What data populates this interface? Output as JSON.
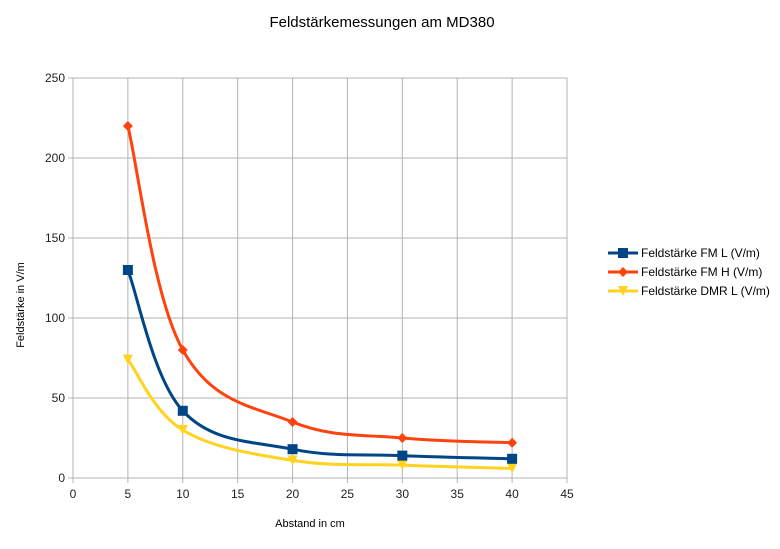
{
  "chart_data": {
    "type": "scatter",
    "title": "Feldstärkemessungen am MD380",
    "xlabel": "Abstand in cm",
    "ylabel": "Feldstärke in V/m",
    "xlim": [
      0,
      45
    ],
    "ylim": [
      0,
      250
    ],
    "xticks": [
      0,
      5,
      10,
      15,
      20,
      25,
      30,
      35,
      40,
      45
    ],
    "yticks": [
      0,
      50,
      100,
      150,
      200,
      250
    ],
    "grid": true,
    "legend_position": "right",
    "series": [
      {
        "name": "Feldstärke FM L (V/m)",
        "color": "#004586",
        "marker": "square",
        "x": [
          5,
          10,
          20,
          30,
          40
        ],
        "y": [
          130,
          42,
          18,
          14,
          12
        ]
      },
      {
        "name": "Feldstärke FM H (V/m)",
        "color": "#ff420e",
        "marker": "diamond",
        "x": [
          5,
          10,
          20,
          30,
          40
        ],
        "y": [
          220,
          80,
          35,
          25,
          22
        ]
      },
      {
        "name": "Feldstärke DMR L (V/m)",
        "color": "#ffd320",
        "marker": "triangle-down",
        "x": [
          5,
          10,
          20,
          30,
          40
        ],
        "y": [
          74,
          30,
          11,
          8,
          6
        ]
      }
    ]
  }
}
